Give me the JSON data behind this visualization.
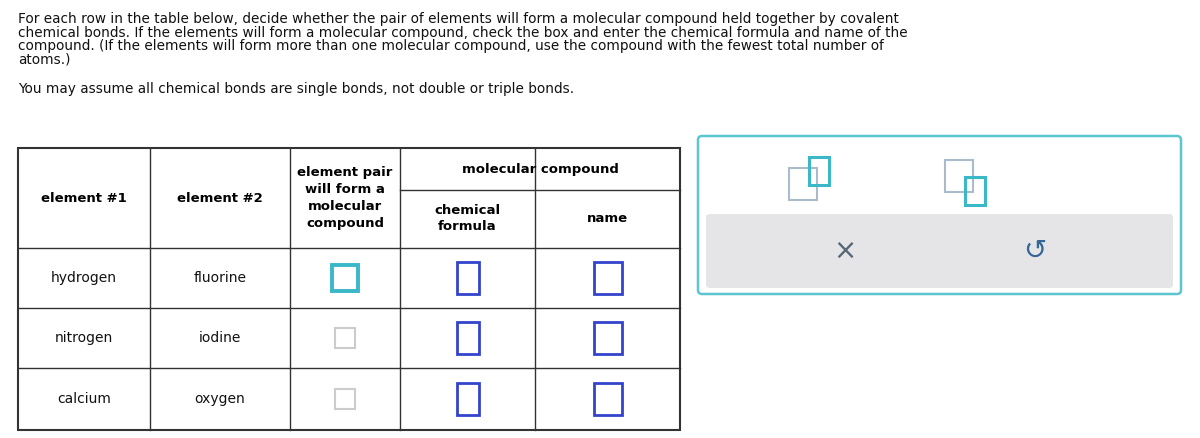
{
  "title_line1": "For each row in the table below, decide whether the pair of elements will form a molecular compound held together by covalent",
  "title_line2": "chemical bonds. If the elements will form a molecular compound, check the box and enter the chemical formula and name of the",
  "title_line3": "compound. (If the elements will form more than one molecular compound, use the compound with the fewest total number of",
  "title_line4": "atoms.)",
  "subtitle": "You may assume all chemical bonds are single bonds, not double or triple bonds.",
  "rows": [
    {
      "elem1": "hydrogen",
      "elem2": "fluorine",
      "checkbox_style": "teal"
    },
    {
      "elem1": "nitrogen",
      "elem2": "iodine",
      "checkbox_style": "light_gray"
    },
    {
      "elem1": "calcium",
      "elem2": "oxygen",
      "checkbox_style": "light_gray"
    }
  ],
  "bg_color": "#ffffff",
  "text_color": "#111111",
  "bold_text_color": "#000000",
  "table_line_color": "#333333",
  "teal_color": "#3ab8c8",
  "light_gray_color": "#cccccc",
  "blue_input_color": "#3344cc",
  "panel_border_color": "#5bc5d0",
  "panel_bg_color": "#ffffff",
  "panel_gray_bg": "#e5e5e8",
  "x_color": "#556677",
  "undo_color": "#336699",
  "icon_gray_color": "#aabbcc",
  "icon_teal_color": "#3ab8c8"
}
